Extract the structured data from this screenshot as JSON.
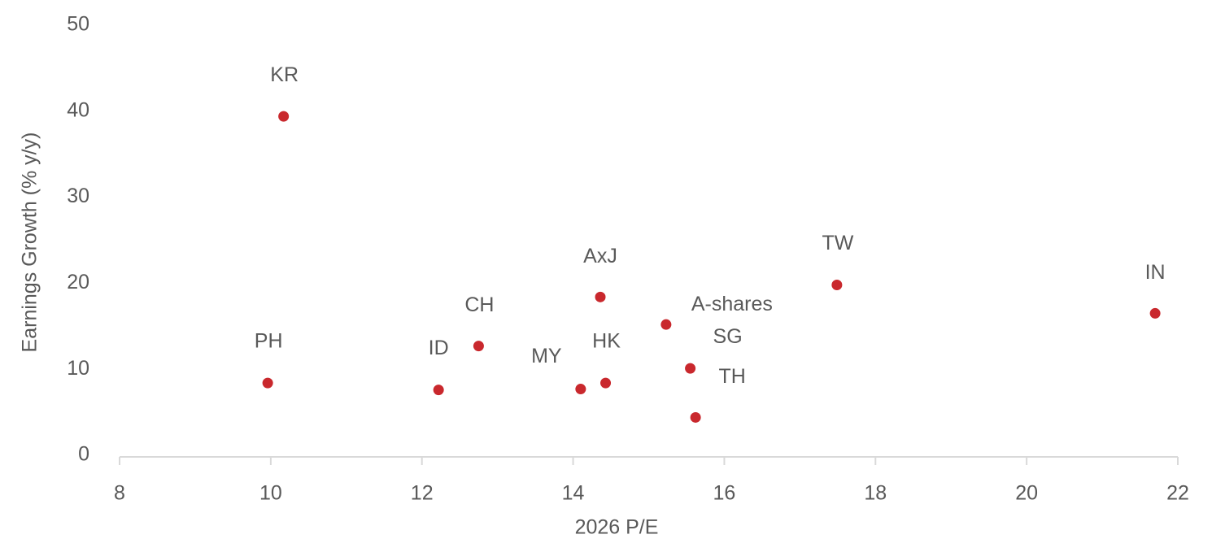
{
  "chart_data": {
    "type": "scatter",
    "x_label": "2026 P/E",
    "y_label": "Earnings Growth (% y/y)",
    "labels": [
      "KR",
      "PH",
      "ID",
      "CH",
      "MY",
      "HK",
      "AxJ",
      "A-shares",
      "SG",
      "TH",
      "TW",
      "IN"
    ],
    "x": [
      10.17,
      9.96,
      12.22,
      12.75,
      14.1,
      14.43,
      14.36,
      15.23,
      15.55,
      15.62,
      17.49,
      21.7
    ],
    "values": [
      39.4,
      8.4,
      7.6,
      12.7,
      7.7,
      8.4,
      18.4,
      15.2,
      10.1,
      4.4,
      19.8,
      16.5
    ],
    "color": "#c9282d",
    "xlim": [
      8,
      22
    ],
    "xticks": [
      8,
      10,
      12,
      14,
      16,
      18,
      20,
      22
    ],
    "ylim": [
      0,
      50
    ],
    "yticks": [
      0,
      10,
      20,
      30,
      40,
      50
    ]
  }
}
